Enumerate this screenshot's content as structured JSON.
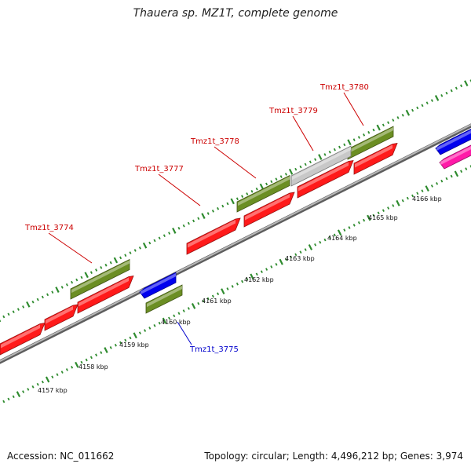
{
  "title": "Thauera sp. MZ1T, complete genome",
  "footer": {
    "accession": "Accession: NC_011662",
    "topology": "Topology: circular; Length: 4,496,212 bp; Genes: 3,974"
  },
  "colors": {
    "forward_cds": "#ff1a1a",
    "reverse_cds": "#0000ee",
    "gene_bar": "#6b8e23",
    "tick": "#2e8b2e",
    "backbone": "#8c8c8c",
    "grey_feature": "#c8c8c8",
    "pink_feature": "#ff1aa8",
    "label_forward": "#cc0000",
    "label_reverse": "#0000cc"
  },
  "scale_labels": [
    "4157 kbp",
    "4158 kbp",
    "4159 kbp",
    "4160 kbp",
    "4161 kbp",
    "4162 kbp",
    "4163 kbp",
    "4164 kbp",
    "4165 kbp",
    "4166 kbp"
  ],
  "gene_labels": [
    {
      "name": "Tmz1t_3774",
      "strand": "forward"
    },
    {
      "name": "Tmz1t_3777",
      "strand": "forward"
    },
    {
      "name": "Tmz1t_3778",
      "strand": "forward"
    },
    {
      "name": "Tmz1t_3779",
      "strand": "forward"
    },
    {
      "name": "Tmz1t_3780",
      "strand": "forward"
    },
    {
      "name": "Tmz1t_3775",
      "strand": "reverse"
    }
  ]
}
